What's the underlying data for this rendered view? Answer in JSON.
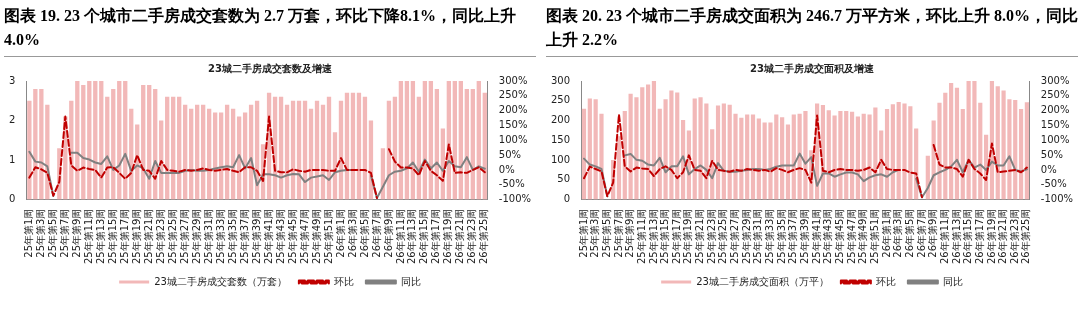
{
  "chart_data": [
    {
      "type": "bar",
      "title": "图表 19. 23 个城市二手房成交套数为 2.7 万套，环比下降8.1%，同比上升 4.0%",
      "subtitle": "23城二手房成交套数及增速",
      "categories": [
        "25年第1周",
        null,
        "25年第3周",
        null,
        "25年第5周",
        null,
        "25年第7周",
        null,
        "25年第9周",
        null,
        "25年第11周",
        null,
        "25年第13周",
        null,
        "25年第15周",
        null,
        "25年第17周",
        null,
        "25年第19周",
        null,
        "25年第21周",
        null,
        "25年第23周",
        null,
        "25年第25周",
        null,
        "25年第27周",
        null,
        "25年第29周",
        null,
        "25年第31周",
        null,
        "25年第33周",
        null,
        "25年第35周",
        null,
        "25年第37周",
        null,
        "25年第39周",
        null,
        "25年第41周",
        null,
        "25年第43周",
        null,
        "25年第45周",
        null,
        "25年第47周",
        null,
        "25年第49周",
        null,
        "25年第51周",
        null,
        "26年第1周",
        null,
        "26年第3周",
        null,
        "26年第5周",
        null,
        "26年第7周",
        null,
        "26年第9周",
        null,
        "26年第11周",
        null,
        "26年第13周",
        null,
        "26年第15周",
        null,
        "26年第17周",
        null,
        "26年第19周",
        null,
        "26年第21周",
        null,
        "26年第23周",
        null,
        "26年第25周"
      ],
      "series": [
        {
          "name": "23城二手房成交套数（万套）",
          "color": "#f2b8b8",
          "values": [
            2.5,
            2.8,
            2.8,
            2.4,
            null,
            1.3,
            2.1,
            2.5,
            3,
            2.9,
            3,
            3,
            3,
            2.6,
            2.8,
            3,
            3,
            2.3,
            1.9,
            2.9,
            2.9,
            2.8,
            2.0,
            2.6,
            2.6,
            2.6,
            2.4,
            2.3,
            2.4,
            2.4,
            2.3,
            2.2,
            2.2,
            2.4,
            2.3,
            2.1,
            2.2,
            2.4,
            2.5,
            1.4,
            2.7,
            2.6,
            2.6,
            2.4,
            2.5,
            2.5,
            2.5,
            2.3,
            2.5,
            2.4,
            2.6,
            1.7,
            2.5,
            2.7,
            2.7,
            2.7,
            2.6,
            2.0,
            null,
            1.3,
            2.5,
            2.6,
            3,
            3,
            3,
            2.6,
            3,
            3,
            2.8,
            1.8,
            3,
            3,
            3,
            2.8,
            2.8,
            3,
            2.7
          ]
        },
        {
          "name": "环比",
          "type": "line",
          "axis": "y2",
          "line_style": "dashed",
          "color": "#c00000",
          "values": [
            -26,
            9,
            2,
            -10,
            -87,
            -40,
            180,
            15,
            -3,
            8,
            3,
            0,
            -26,
            8,
            9,
            -10,
            -30,
            -10,
            50,
            0,
            -3,
            -30,
            30,
            0,
            -3,
            -6,
            0,
            -3,
            0,
            5,
            0,
            -3,
            0,
            3,
            -3,
            -8,
            9,
            9,
            -3,
            -37,
            180,
            -3,
            -8,
            -8,
            2,
            -3,
            -6,
            0,
            0,
            0,
            -3,
            -3,
            40,
            0,
            0,
            0,
            0,
            -10,
            -95,
            null,
            70,
            28,
            8,
            8,
            5,
            -18,
            30,
            -3,
            -18,
            -37,
            86,
            -10,
            -8,
            -10,
            0,
            9,
            -8
          ]
        },
        {
          "name": "同比",
          "type": "line",
          "axis": "y2",
          "color": "#808080",
          "values": [
            61,
            28,
            25,
            12,
            -88,
            null,
            null,
            58,
            58,
            40,
            35,
            25,
            20,
            46,
            0,
            15,
            54,
            -3,
            15,
            5,
            -30,
            30,
            -10,
            -10,
            -10,
            -10,
            -3,
            0,
            -3,
            -3,
            0,
            5,
            9,
            12,
            9,
            50,
            5,
            40,
            -52,
            -15,
            -15,
            -18,
            -26,
            -18,
            -14,
            -15,
            -41,
            -26,
            -22,
            -18,
            -34,
            -8,
            -3,
            0,
            0,
            null,
            null,
            -20,
            -95,
            -57,
            -18,
            -6,
            -3,
            5,
            25,
            -6,
            35,
            5,
            25,
            -3,
            30,
            12,
            9,
            43,
            0,
            12,
            4
          ]
        }
      ],
      "ylim": [
        0,
        3
      ],
      "yticks": [
        0,
        1,
        2,
        3
      ],
      "y2lim": [
        -100,
        300
      ],
      "y2ticks": [
        {
          "value": -100,
          "label": "-100%"
        },
        {
          "value": -50,
          "label": "-50%"
        },
        {
          "value": 0,
          "label": "0%"
        },
        {
          "value": 50,
          "label": "50%"
        },
        {
          "value": 100,
          "label": "100%"
        },
        {
          "value": 150,
          "label": "150%"
        },
        {
          "value": 200,
          "label": "200%"
        },
        {
          "value": 250,
          "label": "250%"
        },
        {
          "value": 300,
          "label": "300%"
        }
      ],
      "legend": "bottom"
    },
    {
      "type": "bar",
      "title": "图表 20. 23 个城市二手房成交面积为 246.7 万平方米，环比上升 8.0%，同比上升 2.2%",
      "subtitle": "23城二手房成交面积及增速",
      "categories": [
        "25年第1周",
        null,
        "25年第3周",
        null,
        "25年第5周",
        null,
        "25年第7周",
        null,
        "25年第9周",
        null,
        "25年第11周",
        null,
        "25年第13周",
        null,
        "25年第15周",
        null,
        "25年第17周",
        null,
        "25年第19周",
        null,
        "25年第21周",
        null,
        "25年第23周",
        null,
        "25年第25周",
        null,
        "25年第27周",
        null,
        "25年第29周",
        null,
        "25年第31周",
        null,
        "25年第33周",
        null,
        "25年第35周",
        null,
        "25年第37周",
        null,
        "25年第39周",
        null,
        "25年第41周",
        null,
        "25年第43周",
        null,
        "25年第45周",
        null,
        "25年第47周",
        null,
        "25年第49周",
        null,
        "25年第51周",
        null,
        "26年第1周",
        null,
        "26年第3周",
        null,
        "26年第5周",
        null,
        "26年第7周",
        null,
        "26年第9周",
        null,
        "26年第11周",
        null,
        "26年第13周",
        null,
        "26年第15周",
        null,
        "26年第17周",
        null,
        "26年第19周",
        null,
        "26年第21周",
        null,
        "26年第23周",
        null,
        "26年第25周"
      ],
      "series": [
        {
          "name": "23城二手房成交面积（万平）",
          "color": "#f2b8b8",
          "values": [
            230,
            256,
            254,
            217,
            null,
            100,
            160,
            224,
            268,
            259,
            284,
            291,
            300,
            230,
            254,
            276,
            271,
            201,
            175,
            256,
            259,
            243,
            178,
            238,
            243,
            240,
            217,
            207,
            215,
            215,
            205,
            195,
            195,
            215,
            208,
            190,
            215,
            217,
            224,
            125,
            243,
            239,
            226,
            213,
            224,
            224,
            222,
            210,
            217,
            215,
            233,
            175,
            229,
            241,
            247,
            243,
            236,
            180,
            null,
            111,
            200,
            245,
            270,
            295,
            283,
            229,
            300,
            300,
            245,
            164,
            300,
            287,
            276,
            254,
            252,
            229,
            246
          ]
        },
        {
          "name": "环比",
          "type": "line",
          "axis": "y2",
          "line_style": "dashed",
          "color": "#c00000",
          "values": [
            -28,
            11,
            3,
            -5,
            -89,
            -43,
            187,
            12,
            -5,
            8,
            5,
            3,
            -21,
            3,
            12,
            0,
            -28,
            -8,
            49,
            0,
            -3,
            -28,
            31,
            0,
            -3,
            -6,
            0,
            -3,
            3,
            0,
            -3,
            0,
            -6,
            6,
            0,
            -8,
            0,
            6,
            0,
            -43,
            184,
            -3,
            -8,
            0,
            3,
            0,
            0,
            -3,
            0,
            8,
            -8,
            34,
            3,
            0,
            0,
            0,
            -9,
            -12,
            -92,
            null,
            84,
            18,
            8,
            8,
            3,
            -23,
            34,
            3,
            -12,
            -34,
            89,
            -8,
            -5,
            -3,
            0,
            -8,
            8
          ]
        },
        {
          "name": "同比",
          "type": "line",
          "axis": "y2",
          "color": "#808080",
          "values": [
            38,
            18,
            12,
            3,
            -89,
            null,
            null,
            49,
            54,
            34,
            31,
            18,
            15,
            41,
            -8,
            12,
            12,
            46,
            -15,
            3,
            15,
            0,
            -28,
            23,
            -3,
            -6,
            -6,
            -3,
            0,
            3,
            3,
            0,
            3,
            11,
            15,
            15,
            15,
            55,
            21,
            43,
            -54,
            -12,
            -12,
            -23,
            -15,
            -9,
            -9,
            -15,
            -38,
            -25,
            -18,
            -15,
            -23,
            -8,
            0,
            null,
            null,
            -30,
            -92,
            -61,
            -18,
            -8,
            0,
            12,
            34,
            -8,
            34,
            8,
            18,
            0,
            28,
            15,
            15,
            46,
            0,
            -5,
            2
          ]
        }
      ],
      "ylim": [
        0,
        300
      ],
      "yticks": [
        0,
        50,
        100,
        150,
        200,
        250,
        300
      ],
      "y2lim": [
        -100,
        300
      ],
      "y2ticks": [
        {
          "value": -100,
          "label": "-100%"
        },
        {
          "value": -50,
          "label": "-50%"
        },
        {
          "value": 0,
          "label": "0%"
        },
        {
          "value": 50,
          "label": "50%"
        },
        {
          "value": 100,
          "label": "100%"
        },
        {
          "value": 150,
          "label": "150%"
        },
        {
          "value": 200,
          "label": "200%"
        },
        {
          "value": 250,
          "label": "250%"
        },
        {
          "value": 300,
          "label": "300%"
        }
      ],
      "legend": "bottom"
    }
  ]
}
